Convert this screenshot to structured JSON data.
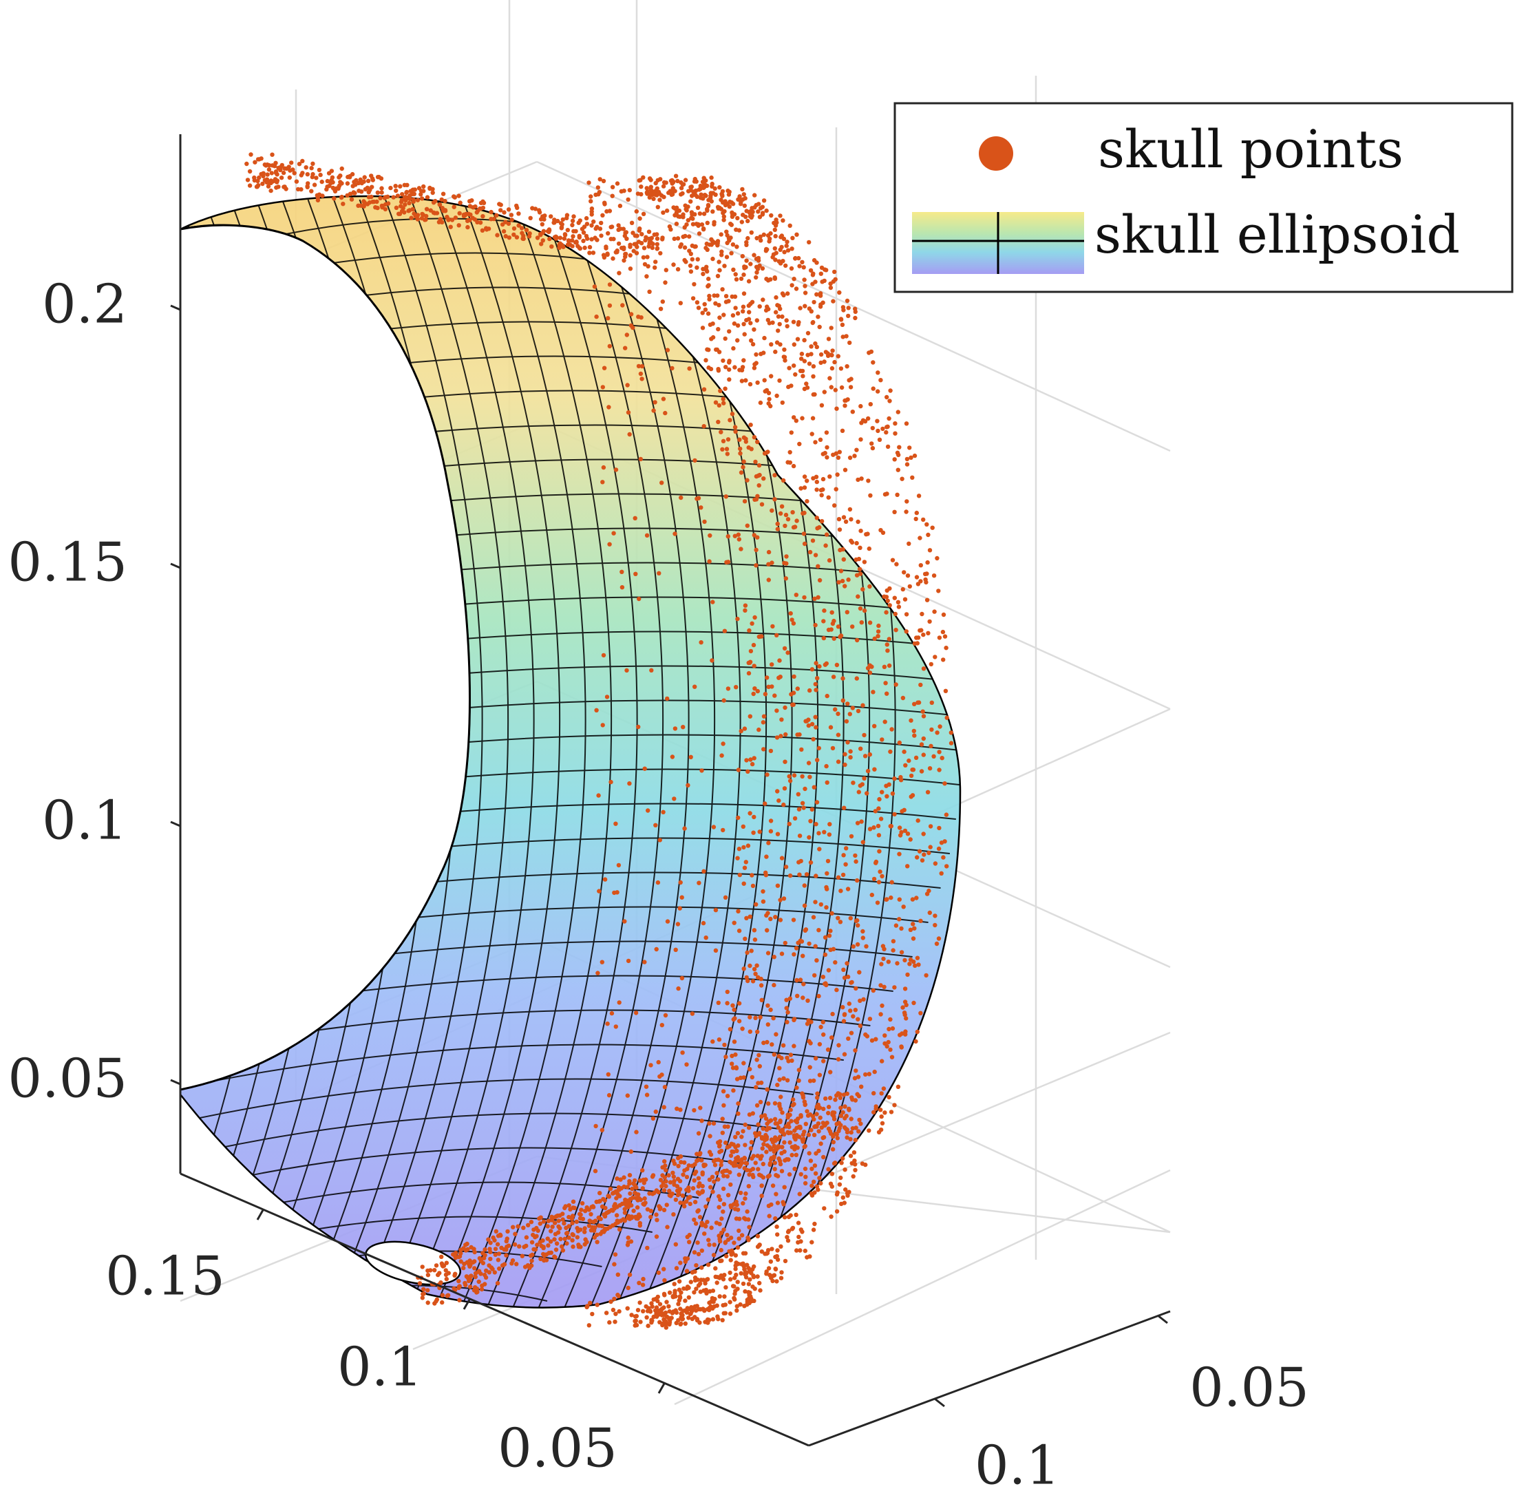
{
  "chart_data": {
    "type": "scatter",
    "subtype": "3d-scatter-with-surface",
    "title": "",
    "xlabel": "",
    "ylabel": "",
    "zlabel": "",
    "axes": {
      "z": {
        "ticks": [
          0.05,
          0.1,
          0.15,
          0.2
        ],
        "tick_labels": [
          "0.05",
          "0.1",
          "0.15",
          "0.2"
        ],
        "lim": [
          0.035,
          0.215
        ]
      },
      "x": {
        "ticks": [
          0.05,
          0.1,
          0.15
        ],
        "tick_labels": [
          "0.05",
          "0.1",
          "0.15"
        ],
        "lim": [
          0.02,
          0.18
        ]
      },
      "y": {
        "ticks": [
          0.05,
          0.1
        ],
        "tick_labels": [
          "0.05",
          "0.1"
        ],
        "lim": [
          0.02,
          0.13
        ]
      }
    },
    "grid": true,
    "legend": {
      "placement": "top-right"
    },
    "series": [
      {
        "name": "skull points",
        "kind": "scatter",
        "color": "#d95319"
      },
      {
        "name": "skull ellipsoid",
        "kind": "surface",
        "colormap": [
          "#a79ff5",
          "#9fb8f8",
          "#8fd9e8",
          "#a6e6c0",
          "#f3e39a",
          "#f5d27e"
        ],
        "edge_color": "#000000"
      }
    ]
  }
}
